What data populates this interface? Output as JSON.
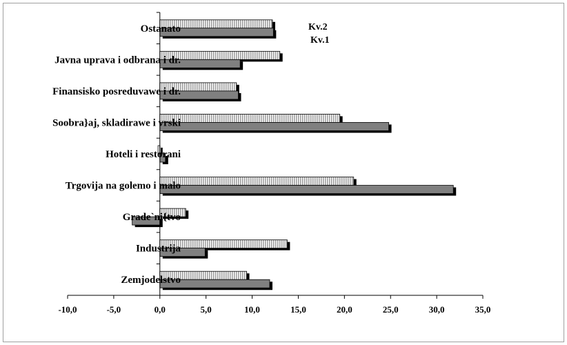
{
  "chart_data": {
    "type": "bar",
    "orientation": "horizontal",
    "categories": [
      "Ostanato",
      "Javna uprava i odbrana i dr.",
      "Finansisko posreduvawe i dr.",
      "Soobra}aj, skladirawe i vrski",
      "Hoteli i restorani",
      "Trgovija na golemo i malo",
      "Grade`ni{tvo",
      "Industrija",
      "Zemjodelstvo"
    ],
    "series": [
      {
        "name": "Kv.2",
        "values": [
          12.2,
          13.0,
          8.3,
          19.5,
          -0.2,
          21.0,
          2.8,
          13.8,
          9.4
        ],
        "color": "#ffffff",
        "pattern": "vertical-stripes"
      },
      {
        "name": "Kv.1",
        "values": [
          12.3,
          8.7,
          8.5,
          24.8,
          0.6,
          31.8,
          -3.0,
          4.9,
          11.9
        ],
        "color": "#808080",
        "pattern": "solid"
      }
    ],
    "xlim": [
      -10,
      35
    ],
    "xticks": [
      "-10,0",
      "-5,0",
      "0,0",
      "5,0",
      "10,0",
      "15,0",
      "20,0",
      "25,0",
      "30,0",
      "35,0"
    ],
    "xlabel": "",
    "ylabel": "",
    "title": "",
    "grid": false,
    "legend": "top-right"
  }
}
